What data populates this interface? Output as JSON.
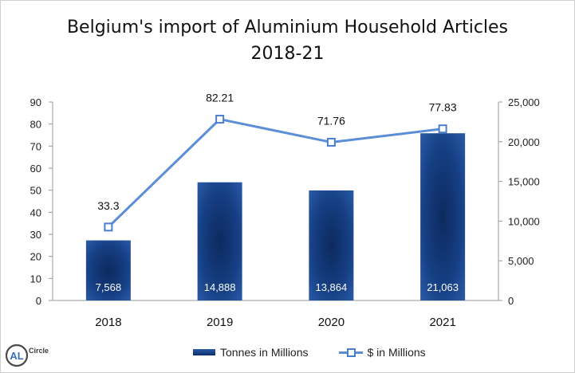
{
  "chart_data": {
    "type": "bar",
    "title": "Belgium's import of Aluminium Household Articles",
    "subtitle": "2018-21",
    "categories": [
      "2018",
      "2019",
      "2020",
      "2021"
    ],
    "series": [
      {
        "name": "Tonnes in Millions",
        "type": "bar",
        "axis": "right",
        "values": [
          7568,
          14888,
          13864,
          21063
        ],
        "value_labels": [
          "7,568",
          "14,888",
          "13,864",
          "21,063"
        ],
        "color": "#1f4e9c"
      },
      {
        "name": "$ in Millions",
        "type": "line",
        "axis": "left",
        "values": [
          33.3,
          82.21,
          71.76,
          77.83
        ],
        "value_labels": [
          "33.3",
          "82.21",
          "71.76",
          "77.83"
        ],
        "color": "#5b8ed6"
      }
    ],
    "y_left": {
      "ylim": [
        0,
        90
      ],
      "ticks": [
        "0",
        "10",
        "20",
        "30",
        "40",
        "50",
        "60",
        "70",
        "80",
        "90"
      ]
    },
    "y_right": {
      "ylim": [
        0,
        25000
      ],
      "ticks": [
        "0",
        "5,000",
        "10,000",
        "15,000",
        "20,000",
        "25,000"
      ]
    },
    "grid": false,
    "legend_position": "bottom"
  },
  "logo": {
    "text": "AL",
    "brand": "Circle"
  }
}
